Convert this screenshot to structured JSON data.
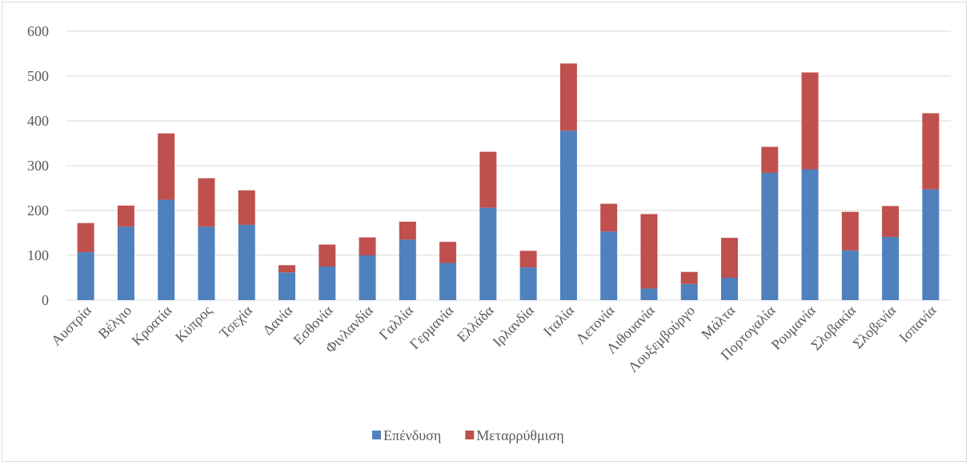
{
  "chart_data": {
    "type": "bar",
    "stacked": true,
    "categories": [
      "Αυστρία",
      "Βέλγιο",
      "Κροατία",
      "Κύπρος",
      "Τσεχία",
      "Δανία",
      "Εσθονία",
      "Φινλανδία",
      "Γαλλία",
      "Γερμανία",
      "Ελλάδα",
      "Ιρλανδία",
      "Ιταλία",
      "Λετονία",
      "Λιθουανία",
      "Λουξεμβούργο",
      "Μάλτα",
      "Πορτογαλία",
      "Ρουμανία",
      "Σλοβακία",
      "Σλοβενία",
      "Ισπανία"
    ],
    "series": [
      {
        "name": "Επένδυση",
        "color": "#4f81bd",
        "values": [
          107,
          164,
          224,
          164,
          168,
          62,
          75,
          100,
          135,
          83,
          206,
          73,
          378,
          153,
          26,
          36,
          50,
          284,
          292,
          111,
          141,
          247
        ]
      },
      {
        "name": "Μεταρρύθμιση",
        "color": "#c0504d",
        "values": [
          65,
          47,
          148,
          108,
          77,
          16,
          49,
          40,
          40,
          47,
          125,
          37,
          150,
          62,
          166,
          27,
          89,
          58,
          216,
          86,
          69,
          170
        ]
      }
    ],
    "ylim": [
      0,
      600
    ],
    "yticks": [
      "0",
      "100",
      "200",
      "300",
      "400",
      "500",
      "600"
    ],
    "grid": true,
    "legend": "bottom",
    "title": "",
    "xlabel": "",
    "ylabel": ""
  }
}
